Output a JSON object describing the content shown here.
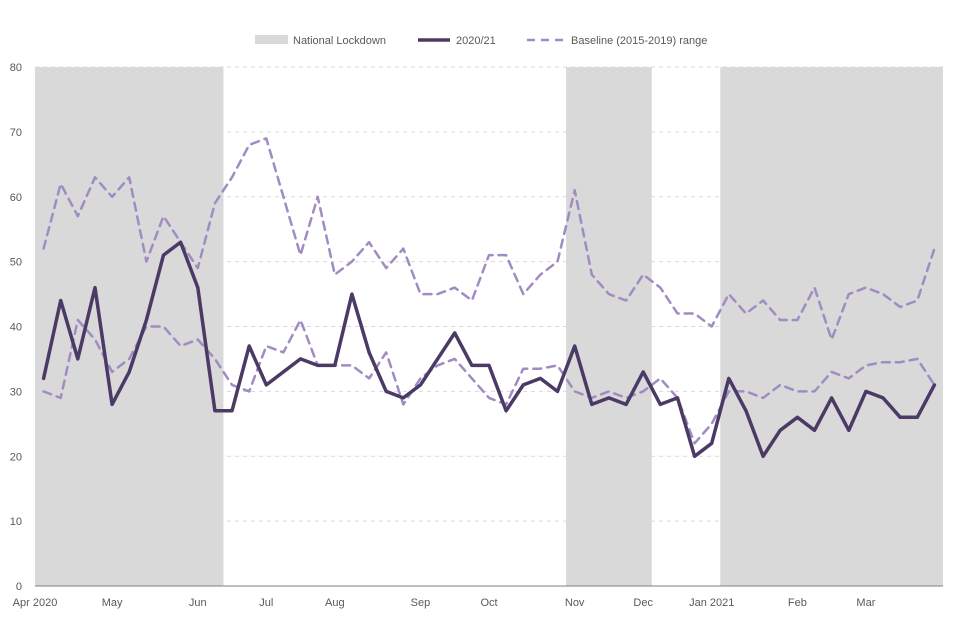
{
  "chart_data": {
    "type": "line",
    "title": "",
    "xlabel": "",
    "ylabel": "",
    "ylim": [
      0,
      80
    ],
    "yticks": [
      0,
      10,
      20,
      30,
      40,
      50,
      60,
      70,
      80
    ],
    "grid": true,
    "legend_position": "top",
    "legend": {
      "lockdown": "National Lockdown",
      "main": "2020/21",
      "baseline": "Baseline (2015-2019) range"
    },
    "colors": {
      "lockdown": "#d9d9d9",
      "main": "#4b3a66",
      "baseline": "#a08cc2",
      "grid": "#d9d9d9",
      "axis": "#7f7f7f"
    },
    "week_count": 53,
    "month_labels": [
      {
        "week": 0,
        "label": "Apr 2020"
      },
      {
        "week": 4.5,
        "label": "May"
      },
      {
        "week": 9.5,
        "label": "Jun"
      },
      {
        "week": 13.5,
        "label": "Jul"
      },
      {
        "week": 17.5,
        "label": "Aug"
      },
      {
        "week": 22.5,
        "label": "Sep"
      },
      {
        "week": 26.5,
        "label": "Oct"
      },
      {
        "week": 31.5,
        "label": "Nov"
      },
      {
        "week": 35.5,
        "label": "Dec"
      },
      {
        "week": 39.5,
        "label": "Jan 2021"
      },
      {
        "week": 44.5,
        "label": "Feb"
      },
      {
        "week": 48.5,
        "label": "Mar"
      }
    ],
    "lockdowns": [
      {
        "start": 0,
        "end": 11
      },
      {
        "start": 31,
        "end": 36
      },
      {
        "start": 40,
        "end": 53
      }
    ],
    "series": [
      {
        "name": "2020/21",
        "style": "solid",
        "values": [
          32,
          44,
          35,
          46,
          28,
          33,
          41,
          51,
          53,
          46,
          27,
          27,
          37,
          31,
          33,
          35,
          34,
          34,
          45,
          36,
          30,
          29,
          31,
          35,
          39,
          34,
          34,
          27,
          31,
          32,
          30,
          37,
          28,
          29,
          28,
          33,
          28,
          29,
          20,
          22,
          32,
          27,
          20,
          24,
          26,
          24,
          29,
          24,
          30,
          29,
          26,
          26,
          31
        ]
      },
      {
        "name": "Baseline upper",
        "style": "dashed",
        "values": [
          52,
          62,
          57,
          63,
          60,
          63,
          50,
          57,
          53,
          49,
          59,
          63,
          68,
          69,
          60,
          51,
          60,
          48,
          50,
          53,
          49,
          52,
          45,
          45,
          46,
          44,
          51,
          51,
          45,
          48,
          50,
          61,
          48,
          45,
          44,
          48,
          46,
          42,
          42,
          40,
          45,
          42,
          44,
          41,
          41,
          46,
          38,
          45,
          46,
          45,
          43,
          44,
          52
        ]
      },
      {
        "name": "Baseline lower",
        "style": "dashed",
        "values": [
          30,
          29,
          41,
          38,
          33,
          35,
          40,
          40,
          37,
          38,
          35,
          31,
          30,
          37,
          36,
          41,
          34,
          34,
          34,
          32,
          36,
          28,
          32,
          34,
          35,
          32,
          29,
          28,
          33.5,
          33.5,
          34,
          30,
          29,
          30,
          29,
          30,
          32,
          29,
          22,
          25,
          30,
          30,
          29,
          31,
          30,
          30,
          33,
          32,
          34,
          34.5,
          34.5,
          35,
          31
        ]
      }
    ]
  }
}
